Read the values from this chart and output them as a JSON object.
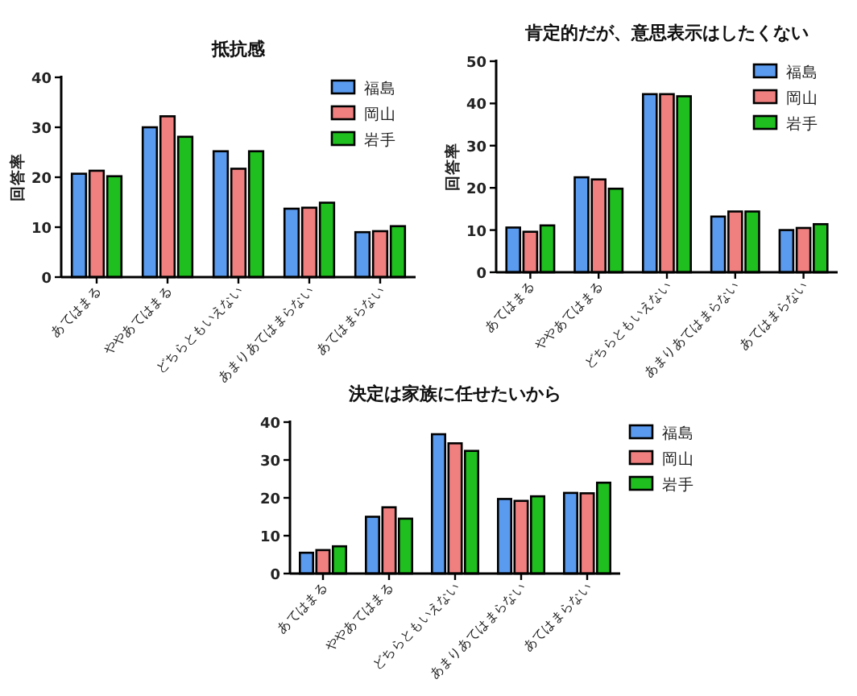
{
  "chart_data": [
    {
      "type": "bar",
      "title": "抵抗感",
      "ylabel": "回答率",
      "categories": [
        "あてはまる",
        "ややあてはまる",
        "どちらともいえない",
        "あまりあてはまらない",
        "あてはまらない"
      ],
      "series": [
        {
          "name": "福島",
          "color": "#5b9bef",
          "values": [
            20.7,
            30,
            25.2,
            13.7,
            9
          ]
        },
        {
          "name": "岡山",
          "color": "#f08080",
          "values": [
            21.3,
            32.2,
            21.7,
            13.9,
            9.2
          ]
        },
        {
          "name": "岩手",
          "color": "#1fbf1f",
          "values": [
            20.2,
            28.1,
            25.2,
            14.9,
            10.2
          ]
        }
      ],
      "ylim": [
        0,
        40
      ],
      "yticks": [
        0,
        10,
        20,
        30,
        40
      ],
      "legend": "top right"
    },
    {
      "type": "bar",
      "title": "肯定的だが、意思表示はしたくない",
      "ylabel": "回答率",
      "categories": [
        "あてはまる",
        "ややあてはまる",
        "どちらともいえない",
        "あまりあてはまらない",
        "あてはまらない"
      ],
      "series": [
        {
          "name": "福島",
          "color": "#5b9bef",
          "values": [
            10.6,
            22.5,
            42.2,
            13.2,
            10
          ]
        },
        {
          "name": "岡山",
          "color": "#f08080",
          "values": [
            9.6,
            22,
            42.2,
            14.4,
            10.5
          ]
        },
        {
          "name": "岩手",
          "color": "#1fbf1f",
          "values": [
            11.1,
            19.8,
            41.7,
            14.4,
            11.4
          ]
        }
      ],
      "ylim": [
        0,
        50
      ],
      "yticks": [
        0,
        10,
        20,
        30,
        40,
        50
      ],
      "legend": "top right"
    },
    {
      "type": "bar",
      "title": "決定は家族に任せたいから",
      "categories": [
        "あてはまる",
        "ややあてはまる",
        "どちらともいえない",
        "あまりあてはまらない",
        "あてはまらない"
      ],
      "series": [
        {
          "name": "福島",
          "color": "#5b9bef",
          "values": [
            5.5,
            15,
            36.8,
            19.7,
            21.3
          ]
        },
        {
          "name": "岡山",
          "color": "#f08080",
          "values": [
            6.2,
            17.5,
            34.4,
            19.2,
            21.2
          ]
        },
        {
          "name": "岩手",
          "color": "#1fbf1f",
          "values": [
            7.2,
            14.5,
            32.4,
            20.4,
            24
          ]
        }
      ],
      "ylim": [
        0,
        40
      ],
      "yticks": [
        0,
        10,
        20,
        30,
        40
      ],
      "legend": "right"
    }
  ]
}
